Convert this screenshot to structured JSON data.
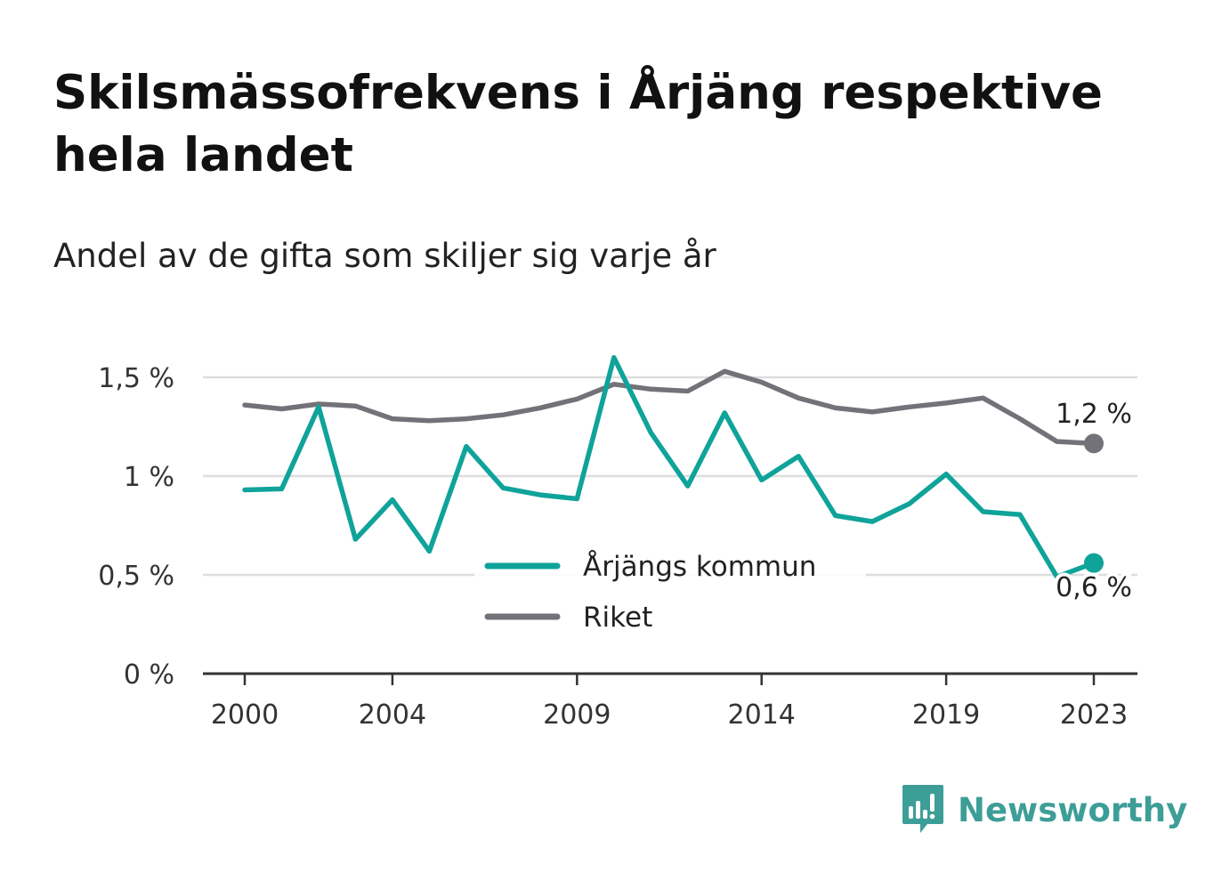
{
  "title": "Skilsmässofrekvens i Årjäng respektive hela landet",
  "subtitle": "Andel av de gifta som skiljer sig varje år",
  "brand": {
    "name": "Newsworthy",
    "icon": "bar-chart-speech-bubble-icon",
    "color": "#3d9e97"
  },
  "chart_data": {
    "type": "line",
    "x": [
      2000,
      2001,
      2002,
      2003,
      2004,
      2005,
      2006,
      2007,
      2008,
      2009,
      2010,
      2011,
      2012,
      2013,
      2014,
      2015,
      2016,
      2017,
      2018,
      2019,
      2020,
      2021,
      2022,
      2023
    ],
    "x_ticks": [
      {
        "value": 2000,
        "label": "2000"
      },
      {
        "value": 2004,
        "label": "2004"
      },
      {
        "value": 2009,
        "label": "2009"
      },
      {
        "value": 2014,
        "label": "2014"
      },
      {
        "value": 2019,
        "label": "2019"
      },
      {
        "value": 2023,
        "label": "2023"
      }
    ],
    "y_ticks": [
      {
        "value": 0,
        "label": "0 %"
      },
      {
        "value": 0.5,
        "label": "0,5 %"
      },
      {
        "value": 1,
        "label": "1 %"
      },
      {
        "value": 1.5,
        "label": "1,5 %"
      }
    ],
    "ylim": [
      0,
      1.6
    ],
    "grid": true,
    "legend_position": "bottom-center",
    "series": [
      {
        "name": "Årjängs kommun",
        "color": "#0fa39a",
        "values": [
          0.93,
          0.935,
          1.35,
          0.68,
          0.88,
          0.62,
          1.15,
          0.94,
          0.905,
          0.885,
          1.6,
          1.22,
          0.95,
          1.32,
          0.98,
          1.1,
          0.8,
          0.77,
          0.86,
          1.01,
          0.82,
          0.805,
          0.49,
          0.56
        ],
        "end_label": "0,6 %"
      },
      {
        "name": "Riket",
        "color": "#737278",
        "values": [
          1.36,
          1.34,
          1.365,
          1.355,
          1.29,
          1.28,
          1.29,
          1.31,
          1.345,
          1.39,
          1.465,
          1.44,
          1.43,
          1.53,
          1.475,
          1.395,
          1.345,
          1.325,
          1.35,
          1.37,
          1.395,
          1.29,
          1.175,
          1.165
        ],
        "end_label": "1,2 %"
      }
    ]
  }
}
